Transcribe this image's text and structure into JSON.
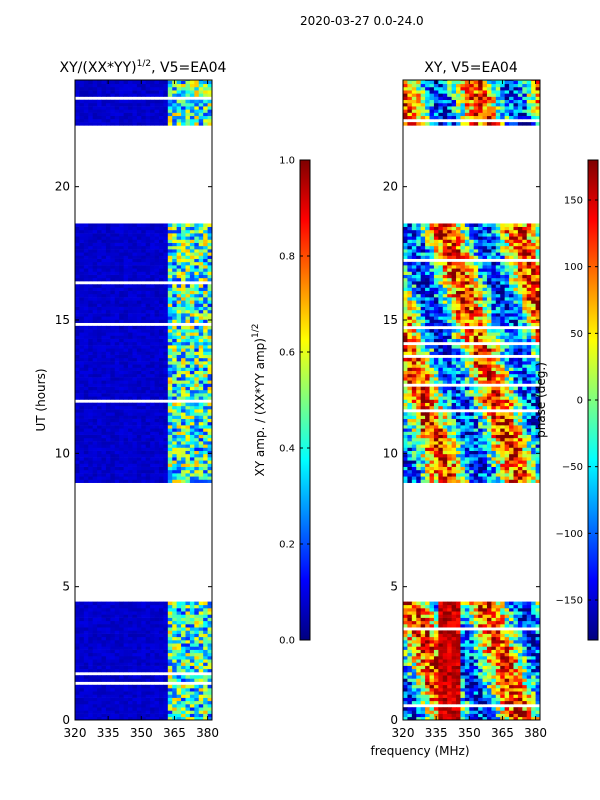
{
  "figure": {
    "suptitle": "2020-03-27 0.0-24.0",
    "xlabel": "frequency (MHz)"
  },
  "colormap": {
    "name": "jet",
    "stops": [
      "#00007f",
      "#0000ff",
      "#007fff",
      "#00ffff",
      "#7fff7f",
      "#ffff00",
      "#ff7f00",
      "#ff0000",
      "#7f0000"
    ]
  },
  "chart_data": [
    {
      "type": "heatmap",
      "panel": "left",
      "title_text": "XY/(XX*YY)",
      "title_sup": "1/2",
      "title_suffix": ", V5=EA04",
      "xlabel": "",
      "ylabel": "UT (hours)",
      "x_ticks": [
        320,
        335,
        350,
        365,
        380
      ],
      "x_tick_labels": [
        "320",
        "335",
        "350",
        "365",
        "380"
      ],
      "y_ticks": [
        0,
        5,
        10,
        15,
        20
      ],
      "y_tick_labels": [
        "0",
        "5",
        "10",
        "15",
        "20"
      ],
      "xlim": [
        320,
        382
      ],
      "ylim": [
        0,
        24
      ],
      "data_time_ranges_hours": [
        [
          0.0,
          4.4
        ],
        [
          8.9,
          18.5
        ],
        [
          22.3,
          24.0
        ]
      ],
      "colorbar": {
        "label_text": "XY amp. / (XX*YY amp)",
        "label_sup": "1/2",
        "range": [
          0.0,
          1.0
        ],
        "ticks": [
          0.0,
          0.2,
          0.4,
          0.6,
          0.8,
          1.0
        ],
        "tick_labels": [
          "0.0",
          "0.2",
          "0.4",
          "0.6",
          "0.8",
          "1.0"
        ]
      }
    },
    {
      "type": "heatmap",
      "panel": "right",
      "title_text": "XY, V5=EA04",
      "xlabel": "",
      "ylabel": "",
      "x_ticks": [
        320,
        335,
        350,
        365,
        380
      ],
      "x_tick_labels": [
        "320",
        "335",
        "350",
        "365",
        "380"
      ],
      "y_ticks": [
        0,
        5,
        10,
        15,
        20
      ],
      "y_tick_labels": [
        "0",
        "5",
        "10",
        "15",
        "20"
      ],
      "xlim": [
        320,
        382
      ],
      "ylim": [
        0,
        24
      ],
      "data_time_ranges_hours": [
        [
          0.0,
          4.4
        ],
        [
          8.9,
          18.5
        ],
        [
          22.3,
          24.0
        ]
      ],
      "colorbar": {
        "label_text": "phase (deg.)",
        "range": [
          -180,
          180
        ],
        "ticks": [
          -150,
          -100,
          -50,
          0,
          50,
          100,
          150
        ],
        "tick_labels": [
          "−150",
          "−100",
          "−50",
          "0",
          "50",
          "100",
          "150"
        ]
      }
    }
  ]
}
